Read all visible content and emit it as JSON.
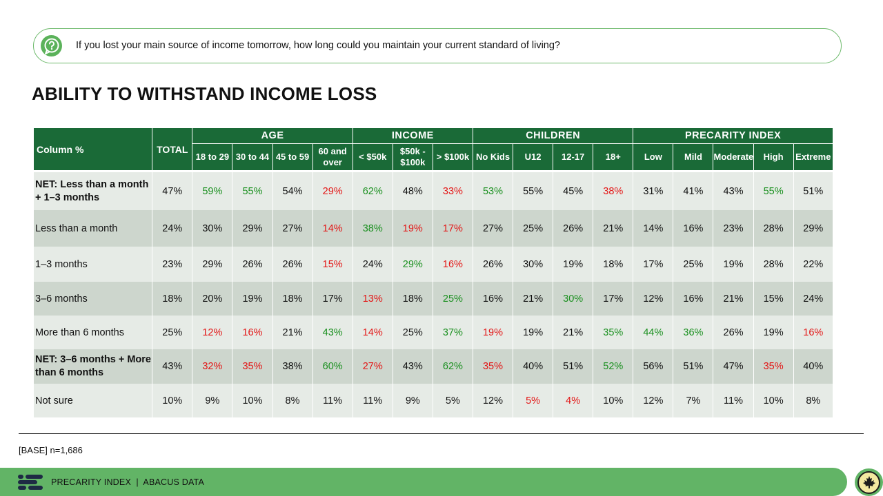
{
  "question": {
    "icon": "question-bubble-icon",
    "text": "If you lost your main source of income tomorrow, how long could you maintain your current standard of living?"
  },
  "title": "ABILITY TO WITHSTAND INCOME LOSS",
  "table": {
    "corner_label": "Column %",
    "total_label": "TOTAL",
    "groups": [
      {
        "label": "AGE",
        "columns": [
          "18 to 29",
          "30 to 44",
          "45 to 59",
          "60 and over"
        ]
      },
      {
        "label": "INCOME",
        "columns": [
          "< $50k",
          "$50k - $100k",
          "> $100k"
        ]
      },
      {
        "label": "CHILDREN",
        "columns": [
          "No Kids",
          "U12",
          "12-17",
          "18+"
        ]
      },
      {
        "label": "PRECARITY INDEX",
        "columns": [
          "Low",
          "Mild",
          "Moderate",
          "High",
          "Extreme"
        ]
      }
    ],
    "rows": [
      {
        "label": "NET: Less than a month + 1–3 months",
        "net": true,
        "shade": "light",
        "values": [
          "47%",
          "59%",
          "55%",
          "54%",
          "29%",
          "62%",
          "48%",
          "33%",
          "53%",
          "55%",
          "45%",
          "38%",
          "31%",
          "41%",
          "43%",
          "55%",
          "51%"
        ],
        "sig": [
          "",
          "pos",
          "pos",
          "",
          "neg",
          "pos",
          "",
          "neg",
          "pos",
          "",
          "",
          "neg",
          "",
          "",
          "",
          "pos",
          ""
        ]
      },
      {
        "label": "Less than a month",
        "net": false,
        "shade": "dark",
        "values": [
          "24%",
          "30%",
          "29%",
          "27%",
          "14%",
          "38%",
          "19%",
          "17%",
          "27%",
          "25%",
          "26%",
          "21%",
          "14%",
          "16%",
          "23%",
          "28%",
          "29%"
        ],
        "sig": [
          "",
          "",
          "",
          "",
          "neg",
          "pos",
          "neg",
          "neg",
          "",
          "",
          "",
          "",
          "",
          "",
          "",
          "",
          ""
        ]
      },
      {
        "label": "1–3 months",
        "net": false,
        "shade": "light",
        "values": [
          "23%",
          "29%",
          "26%",
          "26%",
          "15%",
          "24%",
          "29%",
          "16%",
          "26%",
          "30%",
          "19%",
          "18%",
          "17%",
          "25%",
          "19%",
          "28%",
          "22%"
        ],
        "sig": [
          "",
          "",
          "",
          "",
          "neg",
          "",
          "pos",
          "neg",
          "",
          "",
          "",
          "",
          "",
          "",
          "",
          "",
          ""
        ]
      },
      {
        "label": "3–6 months",
        "net": false,
        "shade": "dark",
        "values": [
          "18%",
          "20%",
          "19%",
          "18%",
          "17%",
          "13%",
          "18%",
          "25%",
          "16%",
          "21%",
          "30%",
          "17%",
          "12%",
          "16%",
          "21%",
          "15%",
          "24%"
        ],
        "sig": [
          "",
          "",
          "",
          "",
          "",
          "neg",
          "",
          "pos",
          "",
          "",
          "pos",
          "",
          "",
          "",
          "",
          "",
          ""
        ]
      },
      {
        "label": "More than 6 months",
        "net": false,
        "shade": "light",
        "values": [
          "25%",
          "12%",
          "16%",
          "21%",
          "43%",
          "14%",
          "25%",
          "37%",
          "19%",
          "19%",
          "21%",
          "35%",
          "44%",
          "36%",
          "26%",
          "19%",
          "16%"
        ],
        "sig": [
          "",
          "neg",
          "neg",
          "",
          "pos",
          "neg",
          "",
          "pos",
          "neg",
          "",
          "",
          "pos",
          "pos",
          "pos",
          "",
          "",
          "neg"
        ]
      },
      {
        "label": "NET: 3–6 months + More than 6 months",
        "net": true,
        "shade": "dark",
        "values": [
          "43%",
          "32%",
          "35%",
          "38%",
          "60%",
          "27%",
          "43%",
          "62%",
          "35%",
          "40%",
          "51%",
          "52%",
          "56%",
          "51%",
          "47%",
          "35%",
          "40%"
        ],
        "sig": [
          "",
          "neg",
          "neg",
          "",
          "pos",
          "neg",
          "",
          "pos",
          "neg",
          "",
          "",
          "pos",
          "",
          "",
          "",
          "neg",
          ""
        ]
      },
      {
        "label": "Not sure",
        "net": false,
        "shade": "light",
        "values": [
          "10%",
          "9%",
          "10%",
          "8%",
          "11%",
          "11%",
          "9%",
          "5%",
          "12%",
          "5%",
          "4%",
          "10%",
          "12%",
          "7%",
          "11%",
          "10%",
          "8%"
        ],
        "sig": [
          "",
          "",
          "",
          "",
          "",
          "",
          "",
          "",
          "",
          "neg",
          "neg",
          "",
          "",
          "",
          "",
          "",
          ""
        ]
      }
    ]
  },
  "chart_data": {
    "type": "table",
    "title": "ABILITY TO WITHSTAND INCOME LOSS",
    "categories": [
      "TOTAL",
      "18 to 29",
      "30 to 44",
      "45 to 59",
      "60 and over",
      "< $50k",
      "$50k - $100k",
      "> $100k",
      "No Kids",
      "U12",
      "12-17",
      "18+",
      "Low",
      "Mild",
      "Moderate",
      "High",
      "Extreme"
    ],
    "series": [
      {
        "name": "NET: Less than a month + 1–3 months",
        "values": [
          47,
          59,
          55,
          54,
          29,
          62,
          48,
          33,
          53,
          55,
          45,
          38,
          31,
          41,
          43,
          55,
          51
        ]
      },
      {
        "name": "Less than a month",
        "values": [
          24,
          30,
          29,
          27,
          14,
          38,
          19,
          17,
          27,
          25,
          26,
          21,
          14,
          16,
          23,
          28,
          29
        ]
      },
      {
        "name": "1–3 months",
        "values": [
          23,
          29,
          26,
          26,
          15,
          24,
          29,
          16,
          26,
          30,
          19,
          18,
          17,
          25,
          19,
          28,
          22
        ]
      },
      {
        "name": "3–6 months",
        "values": [
          18,
          20,
          19,
          18,
          17,
          13,
          18,
          25,
          16,
          21,
          30,
          17,
          12,
          16,
          21,
          15,
          24
        ]
      },
      {
        "name": "More than 6 months",
        "values": [
          25,
          12,
          16,
          21,
          43,
          14,
          25,
          37,
          19,
          19,
          21,
          35,
          44,
          36,
          26,
          19,
          16
        ]
      },
      {
        "name": "NET: 3–6 months + More than 6 months",
        "values": [
          43,
          32,
          35,
          38,
          60,
          27,
          43,
          62,
          35,
          40,
          51,
          52,
          56,
          51,
          47,
          35,
          40
        ]
      },
      {
        "name": "Not sure",
        "values": [
          10,
          9,
          10,
          8,
          11,
          11,
          9,
          5,
          12,
          5,
          4,
          10,
          12,
          7,
          11,
          10,
          8
        ]
      }
    ]
  },
  "colors": {
    "header_green": "#1a6a37",
    "significant_high": "#198f1e",
    "significant_low": "#e31515",
    "footer_green": "#62b466"
  },
  "base_note": "[BASE] n=1,686",
  "footer": {
    "logo_icon": "abacus-logo-icon",
    "text": "PRECARITY INDEX  |  ABACUS DATA",
    "badge_icon": "maple-leaf-icon"
  }
}
